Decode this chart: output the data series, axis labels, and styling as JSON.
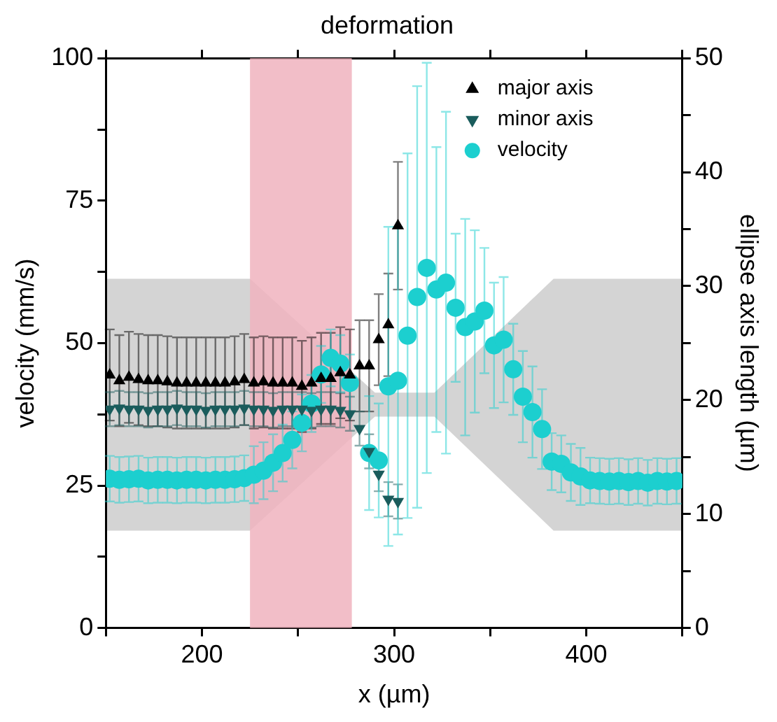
{
  "chart_data": {
    "type": "scatter",
    "title": "deformation",
    "xlabel": "x (µm)",
    "ylabel": "velocity (mm/s)",
    "y2label": "ellipse axis length (µm)",
    "xlim": [
      150,
      450
    ],
    "xticks": [
      {
        "value": 150,
        "label": null
      },
      200,
      {
        "value": 250,
        "label": null
      },
      300,
      {
        "value": 350,
        "label": null
      },
      400,
      {
        "value": 450,
        "label": null
      }
    ],
    "ylim": [
      0,
      100
    ],
    "yticks": [
      0,
      {
        "value": 12.5,
        "label": null
      },
      25,
      {
        "value": 37.5,
        "label": null
      },
      50,
      {
        "value": 62.5,
        "label": null
      },
      75,
      {
        "value": 87.5,
        "label": null
      },
      100
    ],
    "y2lim": [
      0,
      50
    ],
    "y2ticks": [
      0,
      {
        "value": 5,
        "label": null
      },
      10,
      {
        "value": 15,
        "label": null
      },
      20,
      {
        "value": 25,
        "label": null
      },
      30,
      {
        "value": 35,
        "label": null
      },
      40,
      {
        "value": 45,
        "label": null
      },
      50
    ],
    "legend": "top right",
    "bands": [
      {
        "axis": "x",
        "from": 225,
        "to": 278,
        "color": "#f0b3be"
      }
    ],
    "series": [
      {
        "name": "major axis",
        "marker": "triangle",
        "axis": "y2",
        "color": "#000000",
        "x": [
          152,
          157,
          162,
          167,
          172,
          177,
          182,
          187,
          192,
          197,
          202,
          207,
          212,
          217,
          222,
          227,
          232,
          237,
          242,
          247,
          252,
          257,
          262,
          267,
          272,
          277,
          282,
          287,
          292,
          297,
          302
        ],
        "values": [
          22.2,
          21.7,
          22.0,
          21.8,
          21.7,
          21.7,
          21.6,
          21.5,
          21.5,
          21.5,
          21.5,
          21.5,
          21.5,
          21.6,
          21.8,
          21.5,
          21.6,
          21.5,
          21.5,
          21.5,
          21.2,
          21.5,
          21.9,
          21.9,
          22.4,
          22.2,
          23.0,
          23.0,
          25.3,
          26.6,
          35.3
        ],
        "errors": [
          4,
          4,
          4,
          4,
          4,
          4,
          4,
          4,
          4,
          4,
          4,
          4,
          4,
          4,
          4,
          4,
          4,
          4,
          4,
          4,
          4,
          4,
          4,
          4,
          4,
          4,
          4,
          4,
          4,
          4.5,
          5.6
        ]
      },
      {
        "name": "minor axis",
        "marker": "triangle-down",
        "axis": "y2",
        "color": "#1a5c5c",
        "x": [
          152,
          157,
          162,
          167,
          172,
          177,
          182,
          187,
          192,
          197,
          202,
          207,
          212,
          217,
          222,
          227,
          232,
          237,
          242,
          247,
          252,
          257,
          262,
          267,
          272,
          277,
          282,
          287,
          292,
          297,
          302
        ],
        "values": [
          19.2,
          19.3,
          19.2,
          19.2,
          19.1,
          19.2,
          19.2,
          19.3,
          19.2,
          19.2,
          19.1,
          19.2,
          19.2,
          19.2,
          19.3,
          19.2,
          19.2,
          19.1,
          19.2,
          19.2,
          19.2,
          19.1,
          19.2,
          19.2,
          19.1,
          18.8,
          17.5,
          15.5,
          13.5,
          11.3,
          11.1
        ],
        "errors": [
          1.5,
          1.5,
          1.5,
          1.5,
          1.5,
          1.5,
          1.5,
          1.5,
          1.5,
          1.5,
          1.5,
          1.5,
          1.5,
          1.5,
          1.5,
          1.5,
          1.5,
          1.5,
          1.5,
          1.5,
          1.5,
          1.5,
          1.5,
          1.5,
          1.5,
          1.5,
          1.5,
          1.5,
          1.5,
          1.5,
          1.5
        ]
      },
      {
        "name": "velocity",
        "marker": "circle",
        "color": "#1ccfcf",
        "x": [
          152,
          157,
          162,
          167,
          172,
          177,
          182,
          187,
          192,
          197,
          202,
          207,
          212,
          217,
          222,
          227,
          232,
          237,
          242,
          247,
          252,
          257,
          262,
          267,
          272,
          277,
          282,
          287,
          292,
          297,
          302,
          307,
          312,
          317,
          322,
          327,
          332,
          337,
          342,
          347,
          352,
          357,
          362,
          367,
          372,
          377,
          382,
          387,
          392,
          397,
          402,
          407,
          412,
          417,
          422,
          427,
          432,
          437,
          442,
          447
        ],
        "values": [
          26.2,
          26.0,
          26.1,
          26.2,
          25.9,
          26.0,
          26.0,
          25.9,
          26.0,
          26.0,
          25.9,
          26.0,
          26.0,
          26.1,
          26.3,
          26.9,
          27.6,
          29.0,
          30.7,
          33.0,
          36.0,
          39.4,
          44.5,
          47.4,
          46.4,
          43.0,
          null,
          30.7,
          29.4,
          42.4,
          43.4,
          51.3,
          58.1,
          63.2,
          59.4,
          60.6,
          56.2,
          52.8,
          53.8,
          55.7,
          49.6,
          50.6,
          45.4,
          40.6,
          37.9,
          34.9,
          29.2,
          28.8,
          27.3,
          26.6,
          25.9,
          25.8,
          25.7,
          25.8,
          25.6,
          25.8,
          25.5,
          25.8,
          25.7,
          25.8
        ],
        "errors": [
          4,
          4,
          4,
          4,
          4,
          4,
          4,
          4,
          4,
          4,
          4,
          4,
          4,
          4,
          4,
          5,
          5,
          5,
          5,
          5,
          5,
          5,
          5,
          5,
          5,
          5,
          null,
          10,
          10,
          28,
          27,
          32,
          37,
          36,
          25,
          30,
          13,
          19,
          16,
          11,
          11,
          11,
          8,
          8,
          8,
          7,
          5,
          5,
          5,
          5,
          4,
          4,
          4,
          4,
          4,
          4,
          4,
          4,
          4,
          4
        ]
      }
    ]
  }
}
